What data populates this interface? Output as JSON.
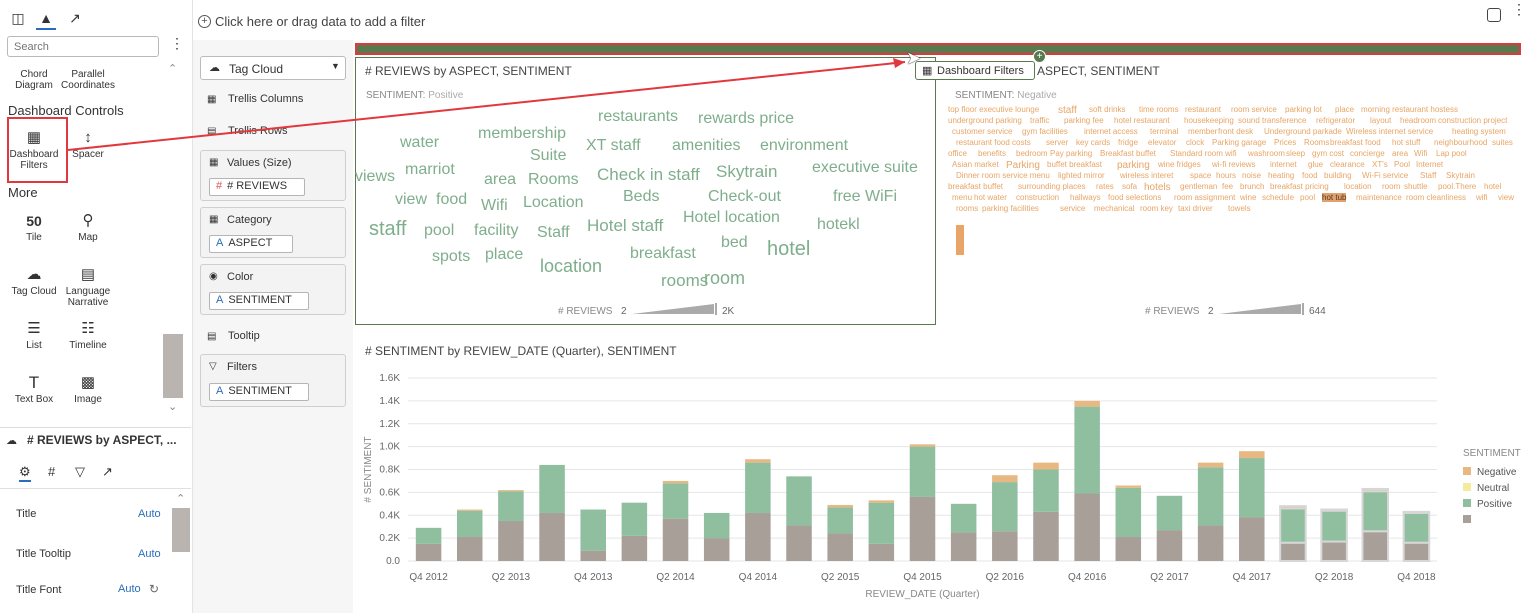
{
  "filter_bar": {
    "add_filter_label": "Click here or drag data to add a filter"
  },
  "left_panel": {
    "search_placeholder": "Search",
    "viz_items_top": [
      {
        "label_line1": "Chord",
        "label_line2": "Diagram",
        "icon": "chord-icon"
      },
      {
        "label_line1": "Parallel",
        "label_line2": "Coordinates",
        "icon": "parallel-icon"
      }
    ],
    "dashboard_controls_heading": "Dashboard Controls",
    "dashboard_filters_line1": "Dashboard",
    "dashboard_filters_line2": "Filters",
    "spacer_label": "Spacer",
    "more_heading": "More",
    "more_items": [
      {
        "label": "Tile",
        "icon": "tile-icon",
        "glyph": "50"
      },
      {
        "label": "Map",
        "icon": "map-icon"
      },
      {
        "label": "Tag Cloud",
        "icon": "tag-cloud-icon"
      },
      {
        "label_line1": "Language",
        "label_line2": "Narrative",
        "icon": "narrative-icon"
      },
      {
        "label": "List",
        "icon": "list-icon"
      },
      {
        "label": "Timeline",
        "icon": "timeline-icon"
      },
      {
        "label": "Text Box",
        "icon": "text-box-icon"
      },
      {
        "label": "Image",
        "icon": "image-icon"
      }
    ],
    "properties": {
      "viz_title": "# REVIEWS by ASPECT, ...",
      "rows": [
        {
          "label": "Title",
          "value": "Auto"
        },
        {
          "label": "Title Tooltip",
          "value": "Auto"
        },
        {
          "label": "Title Font",
          "value": "Auto"
        }
      ]
    }
  },
  "grammar": {
    "viz_type": "Tag Cloud",
    "trellis_columns": "Trellis Columns",
    "trellis_rows": "Trellis Rows",
    "values_label": "Values (Size)",
    "values_pill": "# REVIEWS",
    "category_label": "Category",
    "category_pill": "ASPECT",
    "color_label": "Color",
    "color_pill": "SENTIMENT",
    "tooltip_label": "Tooltip",
    "filters_label": "Filters",
    "filters_pill": "SENTIMENT"
  },
  "drag_tooltip": "Dashboard Filters",
  "tag_cloud": {
    "title_left": "# REVIEWS by ASPECT, SENTIMENT",
    "title_right": "ASPECT, SENTIMENT",
    "positive_label": "SENTIMENT:",
    "positive_value": "Positive",
    "negative_label": "SENTIMENT:",
    "negative_value": "Negative",
    "size_legend_label": "# REVIEWS",
    "pos_min": "2",
    "pos_max": "2K",
    "neg_min": "2",
    "neg_max": "644",
    "positive_color": "#7fae8c",
    "negative_color": "#e8a565",
    "positive_words": [
      "restaurants",
      "rewards price",
      "water",
      "membership",
      "XT staff",
      "amenities",
      "environment",
      "Suite",
      "marriot",
      "Check in staff",
      "Skytrain",
      "executive suite",
      "views",
      "area",
      "Rooms",
      "view",
      "food",
      "Beds",
      "Check-out",
      "free WiFi",
      "Wifi",
      "Location",
      "staff",
      "pool",
      "facility",
      "Staff",
      "Hotel staff",
      "Hotel location",
      "hotekl",
      "bed",
      "breakfast",
      "hotel",
      "spots",
      "place",
      "location",
      "rooms",
      "room"
    ],
    "negative_words": [
      "top floor executive lounge",
      "staff",
      "soft drinks",
      "time rooms",
      "restaurant",
      "room service",
      "parking lot",
      "place",
      "morning restaurant hostess",
      "underground parking",
      "traffic",
      "parking fee",
      "hotel restaurant",
      "housekeeping",
      "sound transference",
      "refrigerator",
      "layout",
      "headroom",
      "construction project",
      "customer service",
      "gym facilities",
      "internet access",
      "terminal",
      "member",
      "front desk",
      "Underground parkade",
      "Wireless internet service",
      "heating system",
      "restaurant food costs",
      "server",
      "key cards",
      "fridge",
      "elevator",
      "clock",
      "Parking garage",
      "Prices",
      "Rooms",
      "breakfast food",
      "hot stuff",
      "neighbourhood",
      "suites",
      "office",
      "benefits",
      "bedroom",
      "Pay parking",
      "Breakfast buffet",
      "Standard room wifi",
      "washroom",
      "sleep",
      "gym cost",
      "concierge",
      "area",
      "Wifi",
      "Lap pool",
      "Asian market",
      "Parking",
      "buffet breakfast",
      "parking",
      "wine fridges",
      "wi-fi reviews",
      "internet",
      "glue",
      "clearance",
      "XT's",
      "Pool",
      "Internet",
      "Dinner room service menu",
      "lighted mirror",
      "wireless interet",
      "space",
      "hours",
      "noise",
      "heating",
      "food",
      "building",
      "Wi-Fi service",
      "Staff",
      "Skytrain",
      "breakfast buffet",
      "surrounding places",
      "rates",
      "sofa",
      "hotels",
      "gentleman",
      "fee",
      "brunch",
      "breakfast pricing",
      "location",
      "room",
      "shuttle",
      "pool.There",
      "hotel",
      "menu",
      "hot water",
      "construction",
      "hallways",
      "food selections",
      "room assignment",
      "wine",
      "schedule",
      "pool",
      "hot tub",
      "maintenance",
      "room cleanliness",
      "wifi",
      "view",
      "rooms",
      "parking facilities",
      "service",
      "mechanical",
      "room key",
      "taxi driver",
      "towels"
    ]
  },
  "chart_data": {
    "type": "bar",
    "stacked": true,
    "title": "# SENTIMENT by REVIEW_DATE (Quarter), SENTIMENT",
    "xlabel": "REVIEW_DATE (Quarter)",
    "ylabel": "# SENTIMENT",
    "ylim": [
      0,
      1600
    ],
    "yticks": [
      "0.0",
      "0.2K",
      "0.4K",
      "0.6K",
      "0.8K",
      "1.0K",
      "1.2K",
      "1.4K",
      "1.6K"
    ],
    "grid": true,
    "legend_title": "SENTIMENT",
    "legend_position": "right",
    "xtick_labels": [
      "Q4 2012",
      "Q2 2013",
      "Q4 2013",
      "Q2 2014",
      "Q4 2014",
      "Q2 2015",
      "Q4 2015",
      "Q2 2016",
      "Q4 2016",
      "Q2 2017",
      "Q4 2017",
      "Q2 2018",
      "Q4 2018"
    ],
    "categories": [
      "Q4 2012",
      "Q1 2013",
      "Q2 2013",
      "Q3 2013",
      "Q4 2013",
      "Q1 2014",
      "Q2 2014",
      "Q3 2014",
      "Q4 2014",
      "Q1 2015",
      "Q2 2015",
      "Q3 2015",
      "Q4 2015",
      "Q1 2016",
      "Q2 2016",
      "Q3 2016",
      "Q4 2016",
      "Q1 2017",
      "Q2 2017",
      "Q3 2017",
      "Q4 2017",
      "Q1 2018",
      "Q2 2018",
      "Q3 2018",
      "Q4 2018"
    ],
    "series": [
      {
        "name": "",
        "color": "#a89f98",
        "values": [
          150,
          210,
          350,
          420,
          90,
          220,
          370,
          200,
          420,
          310,
          240,
          150,
          560,
          250,
          260,
          430,
          590,
          210,
          270,
          310,
          380,
          160,
          170,
          260,
          160
        ]
      },
      {
        "name": "Positive",
        "color": "#8fbf9f",
        "values": [
          140,
          230,
          260,
          420,
          360,
          290,
          310,
          220,
          440,
          430,
          230,
          360,
          440,
          250,
          430,
          370,
          760,
          430,
          300,
          510,
          520,
          300,
          270,
          350,
          260
        ]
      },
      {
        "name": "Neutral",
        "color": "#f4ec9c",
        "values": [
          0,
          0,
          0,
          0,
          0,
          0,
          0,
          0,
          0,
          0,
          0,
          0,
          0,
          0,
          0,
          0,
          0,
          0,
          0,
          0,
          0,
          0,
          0,
          0,
          0
        ]
      },
      {
        "name": "Negative",
        "color": "#e8b882",
        "values": [
          0,
          10,
          10,
          0,
          0,
          0,
          20,
          0,
          30,
          0,
          20,
          20,
          20,
          0,
          60,
          60,
          50,
          20,
          0,
          40,
          60,
          20,
          10,
          20,
          10
        ]
      }
    ],
    "highlighted_categories": [
      "Q1 2018",
      "Q2 2018",
      "Q3 2018",
      "Q4 2018"
    ]
  }
}
